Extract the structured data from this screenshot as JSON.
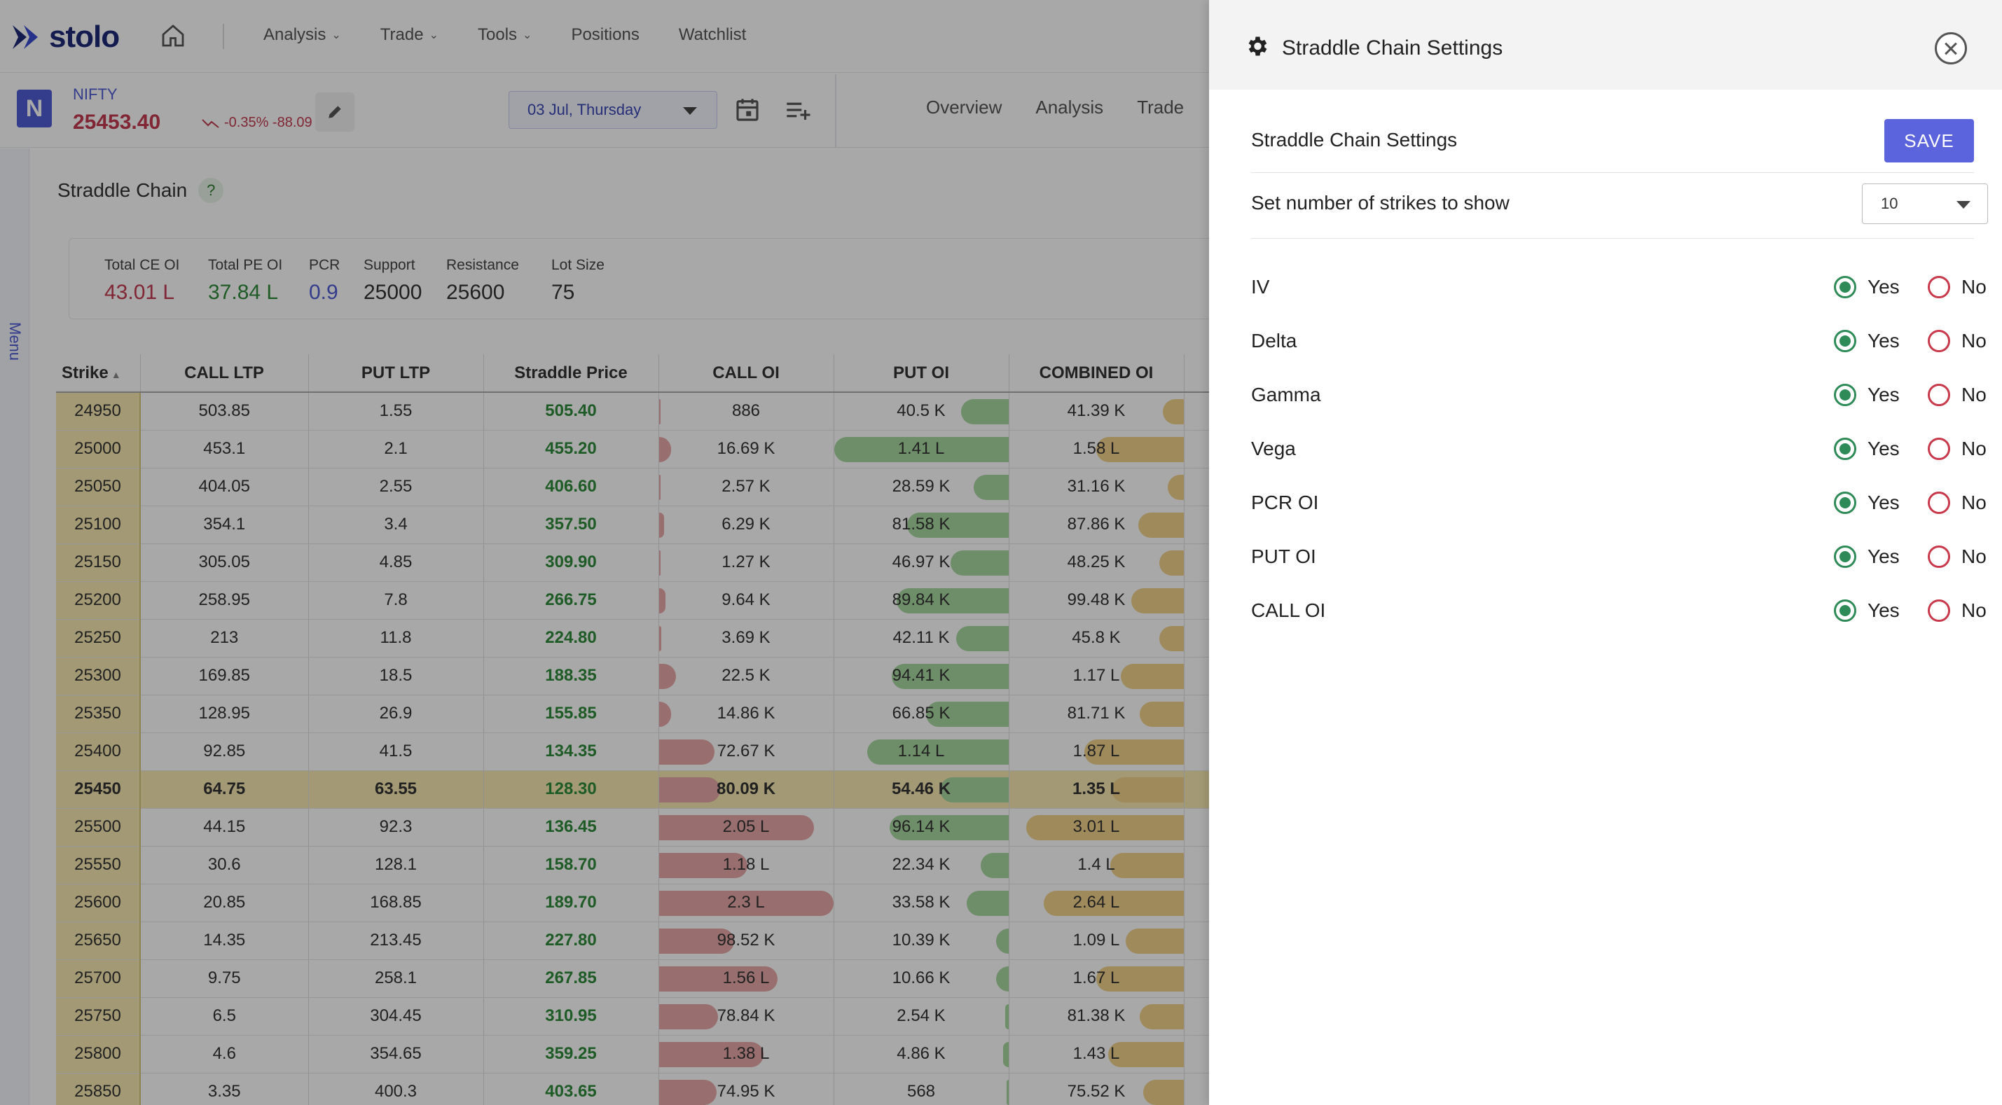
{
  "nav": {
    "logo": "stolo",
    "items": [
      "Analysis",
      "Trade",
      "Tools",
      "Positions",
      "Watchlist"
    ]
  },
  "instrument": {
    "badge": "N",
    "name": "NIFTY",
    "price": "25453.40",
    "change": "-0.35% -88.09",
    "expiry": "03 Jul, Thursday"
  },
  "subtabs": [
    "Overview",
    "Analysis",
    "Trade"
  ],
  "side_menu_label": "Menu",
  "section": {
    "title": "Straddle Chain",
    "help": "?"
  },
  "summary": [
    {
      "label": "Total CE OI",
      "value": "43.01 L",
      "color": "#c23a4f"
    },
    {
      "label": "Total PE OI",
      "value": "37.84 L",
      "color": "#2f8a3a"
    },
    {
      "label": "PCR",
      "value": "0.9",
      "color": "#4f5bd5"
    },
    {
      "label": "Support",
      "value": "25000",
      "color": "#222222"
    },
    {
      "label": "Resistance",
      "value": "25600",
      "color": "#222222"
    },
    {
      "label": "Lot Size",
      "value": "75",
      "color": "#222222"
    }
  ],
  "table": {
    "headers": [
      "Strike",
      "CALL LTP",
      "PUT LTP",
      "Straddle Price",
      "CALL OI",
      "PUT OI",
      "COMBINED OI"
    ],
    "rows": [
      {
        "strike": "24950",
        "call_ltp": "503.85",
        "put_ltp": "1.55",
        "straddle": "505.40",
        "call_oi": "886",
        "put_oi": "40.5 K",
        "comb_oi": "41.39 K",
        "ce": 0.0,
        "pe": 0.27,
        "co": 0.12
      },
      {
        "strike": "25000",
        "call_ltp": "453.1",
        "put_ltp": "2.1",
        "straddle": "455.20",
        "call_oi": "16.69 K",
        "put_oi": "1.41 L",
        "comb_oi": "1.58 L",
        "ce": 0.07,
        "pe": 1.0,
        "co": 0.5
      },
      {
        "strike": "25050",
        "call_ltp": "404.05",
        "put_ltp": "2.55",
        "straddle": "406.60",
        "call_oi": "2.57 K",
        "put_oi": "28.59 K",
        "comb_oi": "31.16 K",
        "ce": 0.01,
        "pe": 0.2,
        "co": 0.09
      },
      {
        "strike": "25100",
        "call_ltp": "354.1",
        "put_ltp": "3.4",
        "straddle": "357.50",
        "call_oi": "6.29 K",
        "put_oi": "81.58 K",
        "comb_oi": "87.86 K",
        "ce": 0.03,
        "pe": 0.58,
        "co": 0.26
      },
      {
        "strike": "25150",
        "call_ltp": "305.05",
        "put_ltp": "4.85",
        "straddle": "309.90",
        "call_oi": "1.27 K",
        "put_oi": "46.97 K",
        "comb_oi": "48.25 K",
        "ce": 0.005,
        "pe": 0.33,
        "co": 0.14
      },
      {
        "strike": "25200",
        "call_ltp": "258.95",
        "put_ltp": "7.8",
        "straddle": "266.75",
        "call_oi": "9.64 K",
        "put_oi": "89.84 K",
        "comb_oi": "99.48 K",
        "ce": 0.04,
        "pe": 0.64,
        "co": 0.3
      },
      {
        "strike": "25250",
        "call_ltp": "213",
        "put_ltp": "11.8",
        "straddle": "224.80",
        "call_oi": "3.69 K",
        "put_oi": "42.11 K",
        "comb_oi": "45.8 K",
        "ce": 0.015,
        "pe": 0.3,
        "co": 0.14
      },
      {
        "strike": "25300",
        "call_ltp": "169.85",
        "put_ltp": "18.5",
        "straddle": "188.35",
        "call_oi": "22.5 K",
        "put_oi": "94.41 K",
        "comb_oi": "1.17 L",
        "ce": 0.1,
        "pe": 0.67,
        "co": 0.36
      },
      {
        "strike": "25350",
        "call_ltp": "128.95",
        "put_ltp": "26.9",
        "straddle": "155.85",
        "call_oi": "14.86 K",
        "put_oi": "66.85 K",
        "comb_oi": "81.71 K",
        "ce": 0.07,
        "pe": 0.47,
        "co": 0.25
      },
      {
        "strike": "25400",
        "call_ltp": "92.85",
        "put_ltp": "41.5",
        "straddle": "134.35",
        "call_oi": "72.67 K",
        "put_oi": "1.14 L",
        "comb_oi": "1.87 L",
        "ce": 0.32,
        "pe": 0.81,
        "co": 0.57
      },
      {
        "strike": "25450",
        "call_ltp": "64.75",
        "put_ltp": "63.55",
        "straddle": "128.30",
        "call_oi": "80.09 K",
        "put_oi": "54.46 K",
        "comb_oi": "1.35 L",
        "ce": 0.35,
        "pe": 0.39,
        "co": 0.41,
        "atm": true
      },
      {
        "strike": "25500",
        "call_ltp": "44.15",
        "put_ltp": "92.3",
        "straddle": "136.45",
        "call_oi": "2.05 L",
        "put_oi": "96.14 K",
        "comb_oi": "3.01 L",
        "ce": 0.89,
        "pe": 0.68,
        "co": 0.9
      },
      {
        "strike": "25550",
        "call_ltp": "30.6",
        "put_ltp": "128.1",
        "straddle": "158.70",
        "call_oi": "1.18 L",
        "put_oi": "22.34 K",
        "comb_oi": "1.4 L",
        "ce": 0.51,
        "pe": 0.16,
        "co": 0.42
      },
      {
        "strike": "25600",
        "call_ltp": "20.85",
        "put_ltp": "168.85",
        "straddle": "189.70",
        "call_oi": "2.3 L",
        "put_oi": "33.58 K",
        "comb_oi": "2.64 L",
        "ce": 1.0,
        "pe": 0.24,
        "co": 0.8
      },
      {
        "strike": "25650",
        "call_ltp": "14.35",
        "put_ltp": "213.45",
        "straddle": "227.80",
        "call_oi": "98.52 K",
        "put_oi": "10.39 K",
        "comb_oi": "1.09 L",
        "ce": 0.43,
        "pe": 0.07,
        "co": 0.33
      },
      {
        "strike": "25700",
        "call_ltp": "9.75",
        "put_ltp": "258.1",
        "straddle": "267.85",
        "call_oi": "1.56 L",
        "put_oi": "10.66 K",
        "comb_oi": "1.67 L",
        "ce": 0.68,
        "pe": 0.07,
        "co": 0.5
      },
      {
        "strike": "25750",
        "call_ltp": "6.5",
        "put_ltp": "304.45",
        "straddle": "310.95",
        "call_oi": "78.84 K",
        "put_oi": "2.54 K",
        "comb_oi": "81.38 K",
        "ce": 0.34,
        "pe": 0.02,
        "co": 0.25
      },
      {
        "strike": "25800",
        "call_ltp": "4.6",
        "put_ltp": "354.65",
        "straddle": "359.25",
        "call_oi": "1.38 L",
        "put_oi": "4.86 K",
        "comb_oi": "1.43 L",
        "ce": 0.6,
        "pe": 0.03,
        "co": 0.43
      },
      {
        "strike": "25850",
        "call_ltp": "3.35",
        "put_ltp": "400.3",
        "straddle": "403.65",
        "call_oi": "74.95 K",
        "put_oi": "568",
        "comb_oi": "75.52 K",
        "ce": 0.33,
        "pe": 0.004,
        "co": 0.23
      }
    ]
  },
  "drawer": {
    "title": "Straddle Chain Settings",
    "section_title": "Straddle Chain Settings",
    "save_label": "SAVE",
    "strikes_label": "Set number of strikes to show",
    "strikes_value": "10",
    "yes_label": "Yes",
    "no_label": "No",
    "options": [
      {
        "label": "IV",
        "selected": "Yes"
      },
      {
        "label": "Delta",
        "selected": "Yes"
      },
      {
        "label": "Gamma",
        "selected": "Yes"
      },
      {
        "label": "Vega",
        "selected": "Yes"
      },
      {
        "label": "PCR OI",
        "selected": "Yes"
      },
      {
        "label": "PUT OI",
        "selected": "Yes"
      },
      {
        "label": "CALL OI",
        "selected": "Yes"
      }
    ]
  }
}
